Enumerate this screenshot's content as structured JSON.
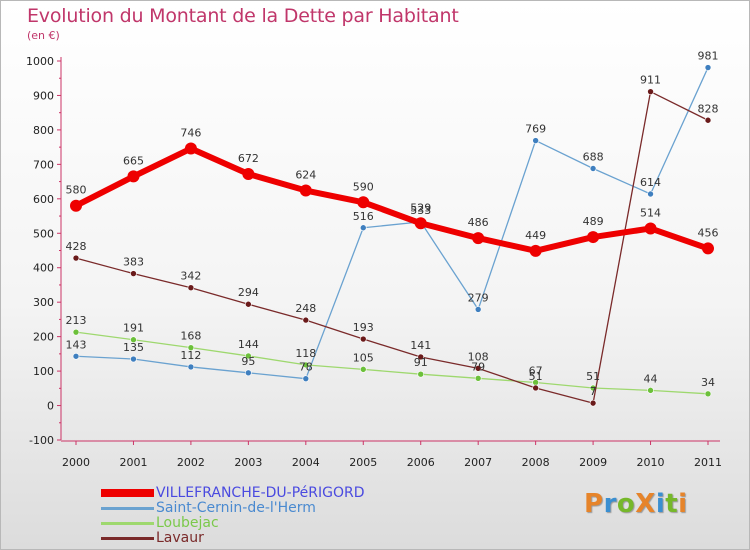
{
  "title": "Evolution du Montant de la Dette par Habitant",
  "unit": "(en €)",
  "logo": {
    "text": "ProXiti",
    "colors": [
      "#e6842a",
      "#3a8fd1",
      "#76b82a",
      "#e6842a",
      "#3a8fd1",
      "#76b82a",
      "#e6842a"
    ]
  },
  "chart_data": {
    "type": "line",
    "x": [
      2000,
      2001,
      2002,
      2003,
      2004,
      2005,
      2006,
      2007,
      2008,
      2009,
      2010,
      2011
    ],
    "ylim": [
      -100,
      1000
    ],
    "yticks": [
      -100,
      0,
      100,
      200,
      300,
      400,
      500,
      600,
      700,
      800,
      900,
      1000
    ],
    "grid": false,
    "legend_position": "bottom-left",
    "series": [
      {
        "name": "VILLEFRANCHE-DU-PéRIGORD",
        "color": "#ee0000",
        "point_color": "#ee0000",
        "label_color": "#4a4ae0",
        "width": 6,
        "radius": 6,
        "values": [
          580,
          665,
          746,
          672,
          624,
          590,
          529,
          486,
          449,
          489,
          514,
          456
        ]
      },
      {
        "name": "Saint-Cernin-de-l'Herm",
        "color": "#6aa2d0",
        "point_color": "#3f7fbf",
        "label_color": "#4a8ad0",
        "width": 1.3,
        "radius": 3,
        "values": [
          143,
          135,
          112,
          95,
          78,
          516,
          533,
          279,
          769,
          688,
          614,
          981
        ]
      },
      {
        "name": "Loubejac",
        "color": "#9ed86e",
        "point_color": "#6cc03a",
        "label_color": "#7bc94a",
        "width": 1.3,
        "radius": 3,
        "values": [
          213,
          191,
          168,
          144,
          118,
          105,
          91,
          79,
          67,
          51,
          44,
          34
        ]
      },
      {
        "name": "Lavaur",
        "color": "#7a2a2a",
        "point_color": "#6a1a1a",
        "label_color": "#7a2a2a",
        "width": 1.3,
        "radius": 3,
        "values": [
          428,
          383,
          342,
          294,
          248,
          193,
          141,
          108,
          51,
          7,
          911,
          828
        ]
      }
    ]
  }
}
